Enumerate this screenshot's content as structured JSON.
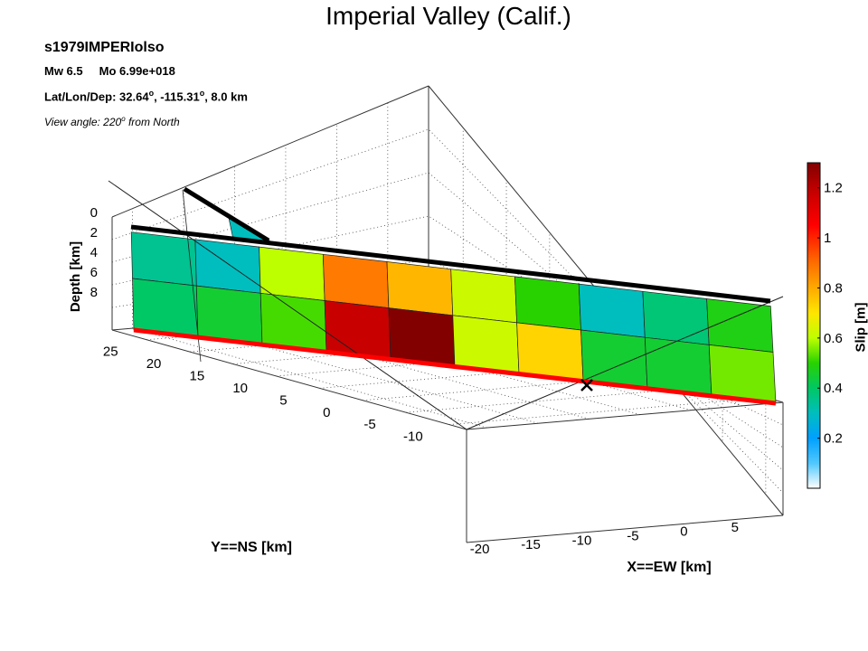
{
  "title": "Imperial Valley (Calif.)",
  "info": {
    "event_id": "s1979IMPERIolso",
    "mw": "Mw 6.5",
    "mo": "Mo 6.99e+018",
    "latlondep_prefix": "Lat/Lon/Dep: 32.64",
    "latlondep_lon": ", -115.31",
    "latlondep_suffix": ", 8.0 km",
    "degree_mark": "o",
    "view_prefix": "View angle: 220",
    "view_suffix": " from North"
  },
  "chart_data": {
    "type": "heatmap",
    "subtype": "3d-fault-slip",
    "title": "Imperial Valley (Calif.)",
    "xlabel": "X==EW [km]",
    "ylabel": "Y==NS [km]",
    "zlabel": "Depth [km]",
    "x_ticks": [
      -20,
      -15,
      -10,
      -5,
      0,
      5
    ],
    "y_ticks": [
      -10,
      -5,
      0,
      5,
      10,
      15,
      20,
      25
    ],
    "z_ticks": [
      0,
      2,
      4,
      6,
      8
    ],
    "grid": true,
    "colorbar": {
      "label": "Slip [m]",
      "ticks": [
        0.2,
        0.4,
        0.6,
        0.8,
        1,
        1.2
      ],
      "range": [
        0,
        1.3
      ]
    },
    "slip_grid": {
      "rows": 2,
      "cols": 10,
      "values": [
        [
          0.35,
          0.3,
          0.6,
          0.88,
          0.78,
          0.62,
          0.5,
          0.3,
          0.38,
          0.48
        ],
        [
          0.4,
          0.45,
          0.52,
          1.18,
          1.3,
          0.62,
          0.73,
          0.45,
          0.45,
          0.55
        ]
      ]
    },
    "hypocenter_marker": "x",
    "fault_trace_color": "#000000",
    "fault_bottom_color": "#ff0000"
  }
}
